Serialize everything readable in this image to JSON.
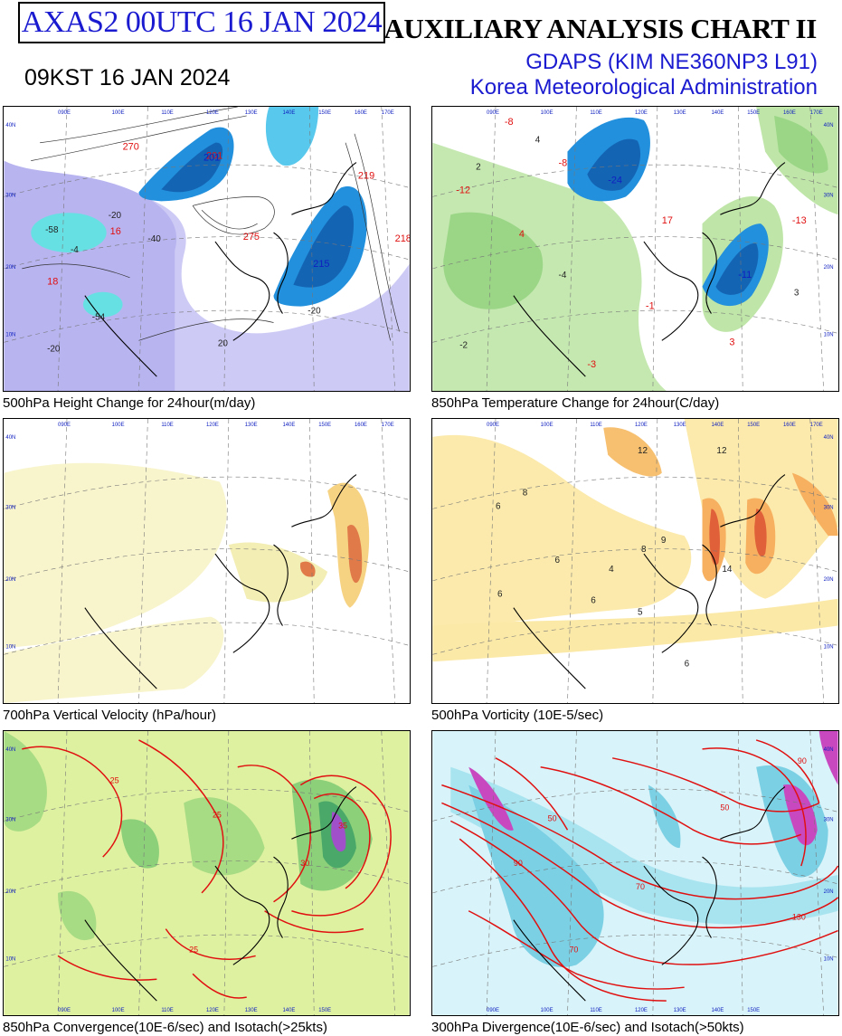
{
  "header": {
    "product_id": "AXAS2  00UTC 16 JAN 2024",
    "chart_title": "AUXILIARY ANALYSIS CHART II",
    "local_time": "09KST 16 JAN 2024",
    "model": "GDAPS (KIM NE360NP3 L91)",
    "agency": "Korea Meteorological Administration"
  },
  "panels": [
    {
      "caption": "500hPa Height Change for 24hour(m/day)",
      "labels_red": [
        "270",
        "201",
        "16",
        "275",
        "219",
        "218",
        "18"
      ],
      "labels_blue": [
        "201",
        "215"
      ],
      "labels_dark": [
        "-20",
        "-58",
        "-54",
        "20",
        "-20",
        "-20",
        "-4",
        "-40"
      ],
      "colors": {
        "negative": "#b8b4f0",
        "strong_negative": "#58e8e0",
        "positive_core": "#1e8ad8"
      }
    },
    {
      "caption": "850hPa Temperature Change for 24hour(C/day)",
      "labels_red": [
        "-8",
        "-12",
        "-8",
        "17",
        "-13",
        "-1",
        "3",
        "-3",
        "4"
      ],
      "labels_blue": [
        "-24",
        "-11"
      ],
      "labels_dark": [
        "4",
        "2",
        "-4",
        "-2",
        "3"
      ],
      "colors": {
        "warming": "#9bd687",
        "cold_core": "#1e8ad8"
      }
    },
    {
      "caption": "700hPa Vertical Velocity (hPa/hour)",
      "labels_red": [],
      "labels_blue": [],
      "labels_dark": [],
      "colors": {
        "ascent": "#f3eeb4",
        "strong_ascent": "#e07a48"
      }
    },
    {
      "caption": "500hPa Vorticity (10E-5/sec)",
      "labels_red": [],
      "labels_blue": [],
      "labels_dark": [
        "12",
        "8",
        "6",
        "6",
        "6",
        "6",
        "5",
        "9",
        "14",
        "12",
        "6",
        "8",
        "4"
      ],
      "colors": {
        "positive": "#f8e08a",
        "strong_positive": "#e0603a"
      }
    },
    {
      "caption": "850hPa Convergence(10E-6/sec) and Isotach(>25kts)",
      "labels_red": [
        "25",
        "25",
        "35",
        "30",
        "25"
      ],
      "labels_blue": [],
      "labels_dark": [],
      "colors": {
        "convergence": "#cdeb8a",
        "strong_convergence": "#4aa868",
        "isotach": "#e01010"
      }
    },
    {
      "caption": "300hPa Divergence(10E-6/sec) and Isotach(>50kts)",
      "labels_red": [
        "50",
        "90",
        "70",
        "130",
        "50",
        "70",
        "90"
      ],
      "labels_blue": [],
      "labels_dark": [],
      "colors": {
        "divergence": "#a8e4f0",
        "strong_divergence": "#c848c0",
        "isotach": "#e01010"
      }
    }
  ],
  "map_grid": {
    "longitude_labels": [
      "090E",
      "100E",
      "110E",
      "120E",
      "130E",
      "140E",
      "150E",
      "160E",
      "170E"
    ],
    "latitude_labels": [
      "40N",
      "30N",
      "20N",
      "10N"
    ]
  }
}
